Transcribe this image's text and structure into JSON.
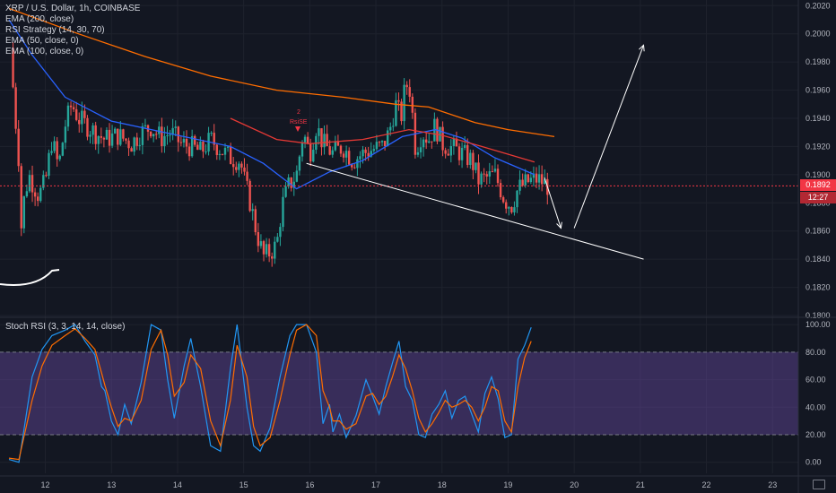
{
  "price_pane": {
    "legend": [
      "XRP / U.S. Dollar, 1h, COINBASE",
      "EMA (200, close)",
      "RSI Strategy (14, 30, 70)",
      "EMA (50, close, 0)",
      "EMA (100, close, 0)"
    ],
    "last_price_tag": "0.1892",
    "countdown_tag": "12:27",
    "signal_label": "RsiSE",
    "signal_count": "2"
  },
  "stoch_pane": {
    "legend": "Stoch RSI (3, 3, 14, 14, close)"
  },
  "colors": {
    "background": "#131722",
    "grid": "#1e222d",
    "candle_up": "#26a69a",
    "candle_down": "#ef5350",
    "ema50": "#2962ff",
    "ema100": "#e53935",
    "ema200": "#ff6d00",
    "stoch_k": "#2196f3",
    "stoch_d": "#ff6d00",
    "stoch_band": "#7e57c2",
    "drawing": "#ffffff",
    "last_price": "#f23645"
  },
  "chart_data": [
    {
      "type": "candlestick",
      "title": "XRP / U.S. Dollar, 1h, COINBASE",
      "x_ticks": [
        "12",
        "13",
        "14",
        "15",
        "16",
        "17",
        "18",
        "19",
        "20",
        "21",
        "22",
        "23"
      ],
      "y_ticks": [
        "0.1800",
        "0.1820",
        "0.1840",
        "0.1860",
        "0.1880",
        "0.1900",
        "0.1920",
        "0.1940",
        "0.1960",
        "0.1980",
        "0.2000",
        "0.2020"
      ],
      "ylim": [
        0.18,
        0.2024
      ],
      "xlim": [
        11.45,
        23.5
      ],
      "last_price": 0.1892,
      "close_path": [
        [
          11.47,
          0.199
        ],
        [
          11.53,
          0.195
        ],
        [
          11.6,
          0.191
        ],
        [
          11.63,
          0.186
        ],
        [
          11.67,
          0.188
        ],
        [
          11.75,
          0.19
        ],
        [
          11.9,
          0.1885
        ],
        [
          12.0,
          0.1895
        ],
        [
          12.1,
          0.1925
        ],
        [
          12.2,
          0.1905
        ],
        [
          12.3,
          0.1935
        ],
        [
          12.4,
          0.195
        ],
        [
          12.5,
          0.194
        ],
        [
          12.6,
          0.1936
        ],
        [
          12.75,
          0.193
        ],
        [
          12.9,
          0.1925
        ],
        [
          13.1,
          0.1928
        ],
        [
          13.3,
          0.1922
        ],
        [
          13.45,
          0.193
        ],
        [
          13.6,
          0.1934
        ],
        [
          13.75,
          0.1926
        ],
        [
          13.9,
          0.193
        ],
        [
          14.05,
          0.1922
        ],
        [
          14.2,
          0.192
        ],
        [
          14.35,
          0.1916
        ],
        [
          14.5,
          0.1925
        ],
        [
          14.65,
          0.1918
        ],
        [
          14.8,
          0.1912
        ],
        [
          14.95,
          0.191
        ],
        [
          15.0,
          0.1898
        ],
        [
          15.1,
          0.188
        ],
        [
          15.2,
          0.1858
        ],
        [
          15.3,
          0.1842
        ],
        [
          15.4,
          0.1845
        ],
        [
          15.5,
          0.185
        ],
        [
          15.58,
          0.1878
        ],
        [
          15.68,
          0.1892
        ],
        [
          15.8,
          0.19
        ],
        [
          15.9,
          0.193
        ],
        [
          16.0,
          0.1915
        ],
        [
          16.1,
          0.1935
        ],
        [
          16.2,
          0.1922
        ],
        [
          16.35,
          0.1915
        ],
        [
          16.5,
          0.192
        ],
        [
          16.65,
          0.191
        ],
        [
          16.8,
          0.1915
        ],
        [
          16.95,
          0.1918
        ],
        [
          17.1,
          0.192
        ],
        [
          17.2,
          0.193
        ],
        [
          17.3,
          0.195
        ],
        [
          17.38,
          0.194
        ],
        [
          17.45,
          0.1965
        ],
        [
          17.52,
          0.196
        ],
        [
          17.6,
          0.1918
        ],
        [
          17.7,
          0.193
        ],
        [
          17.8,
          0.1925
        ],
        [
          17.9,
          0.1935
        ],
        [
          18.0,
          0.1922
        ],
        [
          18.1,
          0.192
        ],
        [
          18.2,
          0.1918
        ],
        [
          18.3,
          0.1915
        ],
        [
          18.45,
          0.191
        ],
        [
          18.55,
          0.1896
        ],
        [
          18.7,
          0.1898
        ],
        [
          18.8,
          0.19
        ],
        [
          18.95,
          0.1882
        ],
        [
          19.05,
          0.1878
        ],
        [
          19.15,
          0.189
        ],
        [
          19.3,
          0.1895
        ],
        [
          19.45,
          0.1897
        ],
        [
          19.6,
          0.1892
        ]
      ],
      "series": [
        {
          "name": "EMA (50, close, 0)",
          "values": [
            [
              11.45,
              0.201
            ],
            [
              11.8,
              0.1985
            ],
            [
              12.3,
              0.1955
            ],
            [
              13.0,
              0.1938
            ],
            [
              14.0,
              0.1928
            ],
            [
              14.8,
              0.192
            ],
            [
              15.3,
              0.1908
            ],
            [
              15.8,
              0.189
            ],
            [
              16.3,
              0.1902
            ],
            [
              16.8,
              0.191
            ],
            [
              17.4,
              0.1927
            ],
            [
              17.9,
              0.1932
            ],
            [
              18.3,
              0.1926
            ],
            [
              18.8,
              0.1912
            ],
            [
              19.4,
              0.19
            ]
          ]
        },
        {
          "name": "EMA (100, close, 0)",
          "values": [
            [
              14.8,
              0.194
            ],
            [
              15.5,
              0.1925
            ],
            [
              16.0,
              0.1922
            ],
            [
              16.8,
              0.1925
            ],
            [
              17.5,
              0.1932
            ],
            [
              18.0,
              0.1928
            ],
            [
              18.6,
              0.192
            ],
            [
              19.4,
              0.1909
            ]
          ]
        },
        {
          "name": "EMA (200, close)",
          "values": [
            [
              11.45,
              0.2018
            ],
            [
              12.5,
              0.2
            ],
            [
              13.5,
              0.1984
            ],
            [
              14.5,
              0.197
            ],
            [
              15.5,
              0.196
            ],
            [
              16.5,
              0.1955
            ],
            [
              17.3,
              0.195
            ],
            [
              17.8,
              0.1948
            ],
            [
              18.5,
              0.1937
            ],
            [
              19.0,
              0.1932
            ],
            [
              19.7,
              0.1927
            ]
          ]
        }
      ],
      "annotations": [
        {
          "type": "trendline",
          "from": [
            15.95,
            0.1908
          ],
          "to": [
            21.05,
            0.184
          ]
        },
        {
          "type": "arrow",
          "from": [
            19.55,
            0.1898
          ],
          "to": [
            19.8,
            0.1862
          ]
        },
        {
          "type": "arrow",
          "from": [
            20.0,
            0.1862
          ],
          "to": [
            21.05,
            0.1992
          ]
        }
      ]
    },
    {
      "type": "line",
      "title": "Stoch RSI (3, 3, 14, 14, close)",
      "y_ticks": [
        "0.00",
        "20.00",
        "40.00",
        "60.00",
        "80.00",
        "100.00"
      ],
      "ylim": [
        -8,
        104
      ],
      "band": [
        20,
        80
      ],
      "series": [
        {
          "name": "%K",
          "values": [
            [
              11.45,
              2
            ],
            [
              11.6,
              0
            ],
            [
              11.8,
              62
            ],
            [
              11.95,
              82
            ],
            [
              12.1,
              92
            ],
            [
              12.3,
              96
            ],
            [
              12.45,
              100
            ],
            [
              12.6,
              88
            ],
            [
              12.75,
              78
            ],
            [
              12.85,
              55
            ],
            [
              12.9,
              52
            ],
            [
              13.0,
              30
            ],
            [
              13.1,
              20
            ],
            [
              13.2,
              42
            ],
            [
              13.3,
              28
            ],
            [
              13.45,
              58
            ],
            [
              13.6,
              100
            ],
            [
              13.75,
              96
            ],
            [
              13.85,
              60
            ],
            [
              13.95,
              32
            ],
            [
              14.1,
              70
            ],
            [
              14.2,
              90
            ],
            [
              14.35,
              55
            ],
            [
              14.5,
              12
            ],
            [
              14.65,
              8
            ],
            [
              14.8,
              68
            ],
            [
              14.9,
              100
            ],
            [
              15.05,
              40
            ],
            [
              15.15,
              12
            ],
            [
              15.25,
              8
            ],
            [
              15.4,
              25
            ],
            [
              15.55,
              62
            ],
            [
              15.7,
              92
            ],
            [
              15.8,
              100
            ],
            [
              15.95,
              100
            ],
            [
              16.1,
              80
            ],
            [
              16.2,
              28
            ],
            [
              16.3,
              42
            ],
            [
              16.35,
              22
            ],
            [
              16.45,
              35
            ],
            [
              16.55,
              18
            ],
            [
              16.7,
              34
            ],
            [
              16.85,
              60
            ],
            [
              16.95,
              48
            ],
            [
              17.05,
              35
            ],
            [
              17.15,
              55
            ],
            [
              17.25,
              72
            ],
            [
              17.35,
              88
            ],
            [
              17.45,
              55
            ],
            [
              17.55,
              45
            ],
            [
              17.65,
              20
            ],
            [
              17.75,
              18
            ],
            [
              17.85,
              35
            ],
            [
              17.95,
              42
            ],
            [
              18.05,
              52
            ],
            [
              18.15,
              32
            ],
            [
              18.25,
              45
            ],
            [
              18.35,
              48
            ],
            [
              18.45,
              35
            ],
            [
              18.55,
              22
            ],
            [
              18.65,
              50
            ],
            [
              18.75,
              62
            ],
            [
              18.85,
              46
            ],
            [
              18.95,
              18
            ],
            [
              19.05,
              20
            ],
            [
              19.15,
              75
            ],
            [
              19.25,
              85
            ],
            [
              19.35,
              98
            ]
          ]
        },
        {
          "name": "%D",
          "values": [
            [
              11.45,
              3
            ],
            [
              11.6,
              2
            ],
            [
              11.8,
              45
            ],
            [
              11.95,
              70
            ],
            [
              12.1,
              85
            ],
            [
              12.3,
              92
            ],
            [
              12.45,
              97
            ],
            [
              12.6,
              90
            ],
            [
              12.75,
              82
            ],
            [
              12.85,
              65
            ],
            [
              12.9,
              56
            ],
            [
              13.0,
              40
            ],
            [
              13.1,
              26
            ],
            [
              13.2,
              32
            ],
            [
              13.3,
              30
            ],
            [
              13.45,
              45
            ],
            [
              13.6,
              82
            ],
            [
              13.75,
              96
            ],
            [
              13.85,
              78
            ],
            [
              13.95,
              48
            ],
            [
              14.1,
              58
            ],
            [
              14.2,
              78
            ],
            [
              14.35,
              68
            ],
            [
              14.5,
              30
            ],
            [
              14.65,
              12
            ],
            [
              14.8,
              45
            ],
            [
              14.9,
              85
            ],
            [
              15.05,
              62
            ],
            [
              15.15,
              26
            ],
            [
              15.25,
              12
            ],
            [
              15.4,
              18
            ],
            [
              15.55,
              45
            ],
            [
              15.7,
              78
            ],
            [
              15.8,
              96
            ],
            [
              15.95,
              100
            ],
            [
              16.1,
              92
            ],
            [
              16.2,
              52
            ],
            [
              16.3,
              40
            ],
            [
              16.35,
              30
            ],
            [
              16.45,
              30
            ],
            [
              16.55,
              24
            ],
            [
              16.7,
              28
            ],
            [
              16.85,
              48
            ],
            [
              16.95,
              50
            ],
            [
              17.05,
              42
            ],
            [
              17.15,
              48
            ],
            [
              17.25,
              62
            ],
            [
              17.35,
              78
            ],
            [
              17.45,
              68
            ],
            [
              17.55,
              52
            ],
            [
              17.65,
              32
            ],
            [
              17.75,
              22
            ],
            [
              17.85,
              28
            ],
            [
              17.95,
              36
            ],
            [
              18.05,
              45
            ],
            [
              18.15,
              40
            ],
            [
              18.25,
              42
            ],
            [
              18.35,
              45
            ],
            [
              18.45,
              40
            ],
            [
              18.55,
              30
            ],
            [
              18.65,
              40
            ],
            [
              18.75,
              55
            ],
            [
              18.85,
              52
            ],
            [
              18.95,
              30
            ],
            [
              19.05,
              22
            ],
            [
              19.15,
              55
            ],
            [
              19.25,
              76
            ],
            [
              19.35,
              88
            ]
          ]
        }
      ]
    }
  ]
}
